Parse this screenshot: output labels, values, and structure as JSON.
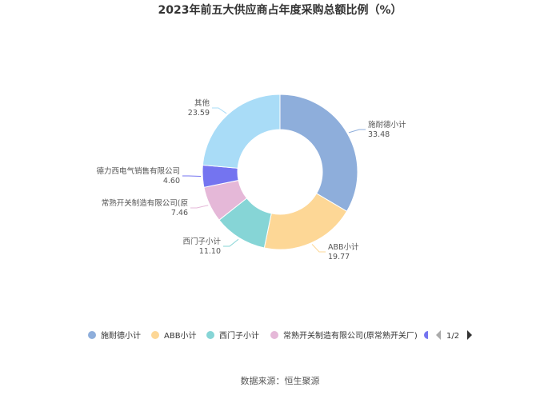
{
  "chart_data": {
    "type": "pie",
    "variant": "donut",
    "title": "2023年前五大供应商占年度采购总额比例（%）",
    "slices": [
      {
        "name": "施耐德小计",
        "value": 33.48,
        "value_label": "33.48",
        "color": "#8eaedb"
      },
      {
        "name": "ABB小计",
        "value": 19.77,
        "value_label": "19.77",
        "color": "#fdd796"
      },
      {
        "name": "西门子小计",
        "value": 11.1,
        "value_label": "11.10",
        "color": "#86d5d6"
      },
      {
        "name": "常熟开关制造有限公司(原",
        "value": 7.46,
        "value_label": "7.46",
        "color": "#e5b8d8"
      },
      {
        "name": "德力西电气销售有限公司",
        "value": 4.6,
        "value_label": "4.60",
        "color": "#7474f0"
      },
      {
        "name": "其他",
        "value": 23.59,
        "value_label": "23.59",
        "color": "#a9dcf7"
      }
    ],
    "legend": {
      "position": "bottom",
      "items": [
        "施耐德小计",
        "ABB小计",
        "西门子小计",
        "常熟开关制造有限公司(原常熟开关厂)"
      ],
      "page": "1/2"
    }
  },
  "source": "数据来源：恒生聚源"
}
